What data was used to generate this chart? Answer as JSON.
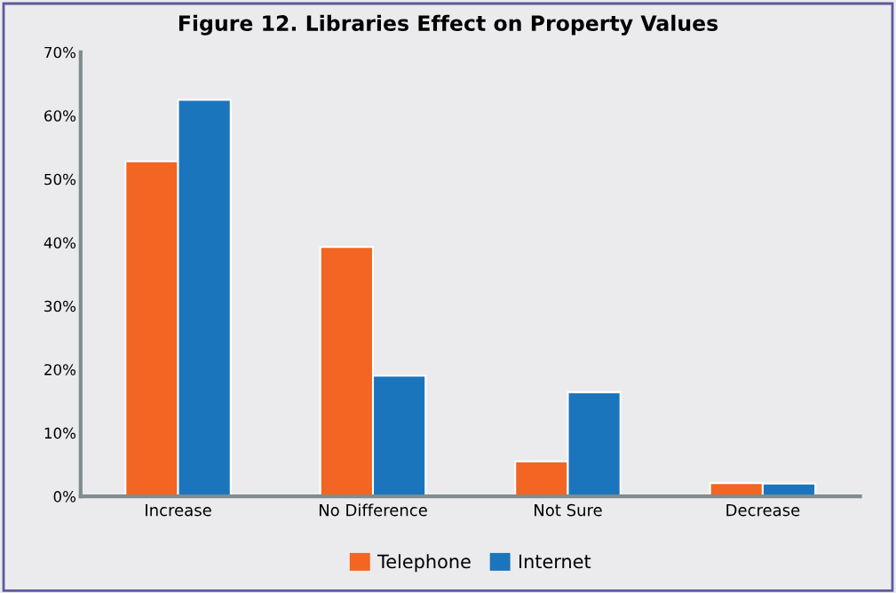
{
  "chart_data": {
    "type": "bar",
    "title": "Figure 12. Libraries Effect on Property Values",
    "categories": [
      "Increase",
      "No Difference",
      "Not Sure",
      "Decrease"
    ],
    "series": [
      {
        "name": "Telephone",
        "color": "#f26522",
        "values": [
          52.8,
          39.3,
          5.5,
          2.1
        ]
      },
      {
        "name": "Internet",
        "color": "#1b75bc",
        "values": [
          62.5,
          19.0,
          16.4,
          2.0
        ]
      }
    ],
    "ylim": [
      0,
      70
    ],
    "yticks": [
      {
        "value": 0,
        "label": "0%"
      },
      {
        "value": 10,
        "label": "10%"
      },
      {
        "value": 20,
        "label": "20%"
      },
      {
        "value": 30,
        "label": "30%"
      },
      {
        "value": 40,
        "label": "40%"
      },
      {
        "value": 50,
        "label": "50%"
      },
      {
        "value": 60,
        "label": "60%"
      },
      {
        "value": 70,
        "label": "70%"
      }
    ],
    "grid": false,
    "legend": "bottom"
  }
}
